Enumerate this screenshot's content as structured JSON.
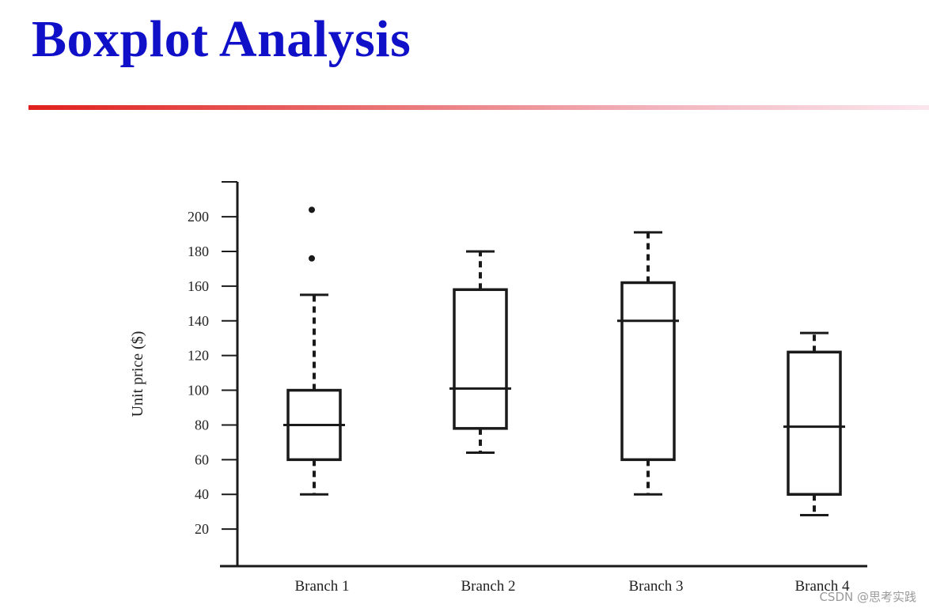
{
  "slide": {
    "title": "Boxplot Analysis",
    "watermark": "CSDN @思考实践"
  },
  "colors": {
    "title": "#1010c8",
    "rule_start": "#e0201c",
    "rule_end": "#fbe6ee",
    "ink": "#1a1a1a"
  },
  "chart_data": {
    "type": "boxplot",
    "title": "",
    "xlabel": "",
    "ylabel": "Unit price ($)",
    "ylim": [
      0,
      220
    ],
    "yticks": [
      20,
      40,
      60,
      80,
      100,
      120,
      140,
      160,
      180,
      200
    ],
    "grid": false,
    "categories": [
      "Branch 1",
      "Branch 2",
      "Branch 3",
      "Branch 4"
    ],
    "boxes": [
      {
        "name": "Branch 1",
        "whisker_low": 40,
        "q1": 60,
        "median": 80,
        "q3": 100,
        "whisker_high": 155,
        "outliers": [
          176,
          204
        ]
      },
      {
        "name": "Branch 2",
        "whisker_low": 64,
        "q1": 78,
        "median": 101,
        "q3": 158,
        "whisker_high": 180,
        "outliers": []
      },
      {
        "name": "Branch 3",
        "whisker_low": 40,
        "q1": 60,
        "median": 140,
        "q3": 162,
        "whisker_high": 191,
        "outliers": []
      },
      {
        "name": "Branch 4",
        "whisker_low": 28,
        "q1": 40,
        "median": 79,
        "q3": 122,
        "whisker_high": 133,
        "outliers": []
      }
    ]
  }
}
